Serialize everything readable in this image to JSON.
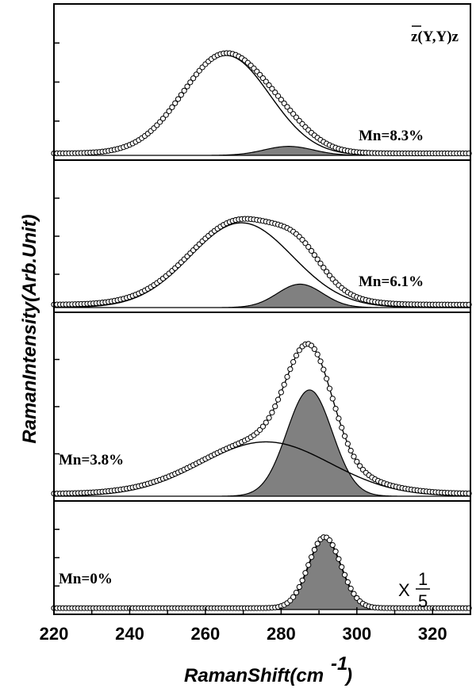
{
  "chart_data": {
    "type": "line",
    "xlabel": "RamanShift(cm",
    "xlabel_superscript": "-1",
    "xlabel_close": ")",
    "ylabel": "RamanIntensity(Arb.Unit)",
    "xlim": [
      220,
      330
    ],
    "x_ticks": [
      "220",
      "240",
      "260",
      "280",
      "300",
      "320"
    ],
    "geometry_label": "z(Y,Y)z",
    "scale_prefix": "X",
    "scale_num": "1",
    "scale_den": "5",
    "colors": {
      "line": "#000000",
      "fill": "#808080",
      "marker_face": "#ffffff"
    },
    "panels": [
      {
        "label": "Mn=8.3%",
        "baseline": 0.02,
        "broad_peak": {
          "center": 265.5,
          "width": 11.5,
          "height": 1.0
        },
        "sharp_peak": {
          "center": 282,
          "width": 6.5,
          "height": 0.09
        }
      },
      {
        "label": "Mn=6.1%",
        "baseline": 0.03,
        "broad_peak": {
          "center": 269.5,
          "width": 13.5,
          "height": 0.87
        },
        "sharp_peak": {
          "center": 285,
          "width": 6.0,
          "height": 0.24
        }
      },
      {
        "label": "Mn=3.8%",
        "baseline": 0.02,
        "broad_peak": {
          "center": 276,
          "width": 17.0,
          "height": 0.45
        },
        "sharp_peak": {
          "center": 287.5,
          "width": 6.0,
          "height": 0.88
        }
      },
      {
        "label": "Mn=0%",
        "baseline": 0.02,
        "broad_peak": null,
        "sharp_peak": {
          "center": 291.5,
          "width": 4.3,
          "height": 0.98
        }
      }
    ]
  }
}
